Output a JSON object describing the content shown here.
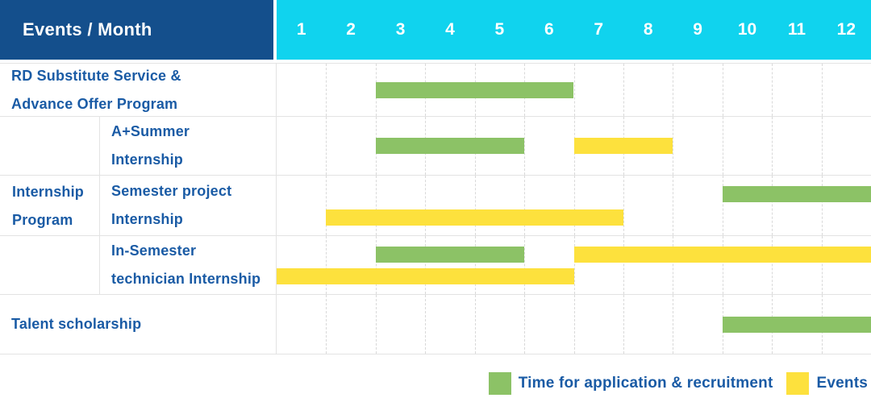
{
  "header": {
    "corner_label": "Events / Month"
  },
  "colors": {
    "header_bg": "#144F8C",
    "month_bg": "#10D3EE",
    "bar_green": "#8CC266",
    "bar_yellow": "#FDE13D",
    "label_text": "#1A5BA5",
    "grid_line": "#E3E3E3",
    "grid_dash": "#D9D9D9"
  },
  "legend": {
    "items": [
      {
        "kind": "recruitment",
        "label": "Time for application & recruitment"
      },
      {
        "kind": "event",
        "label": "Events"
      }
    ]
  },
  "chart_data": {
    "type": "gantt",
    "x_axis_label": "Month",
    "x_range": [
      1,
      12
    ],
    "months": [
      "1",
      "2",
      "3",
      "4",
      "5",
      "6",
      "7",
      "8",
      "9",
      "10",
      "11",
      "12"
    ],
    "group": {
      "label": "Internship\nProgram"
    },
    "rows": [
      {
        "label": "RD Substitute Service &\nAdvance Offer Program",
        "group": null,
        "bars": [
          {
            "kind": "recruitment",
            "start_month": 3,
            "end_month": 6,
            "lane": "center"
          }
        ]
      },
      {
        "label": "A+Summer\nInternship",
        "group": "Internship Program",
        "bars": [
          {
            "kind": "recruitment",
            "start_month": 3,
            "end_month": 5,
            "lane": "center"
          },
          {
            "kind": "event",
            "start_month": 7,
            "end_month": 8,
            "lane": "center"
          }
        ]
      },
      {
        "label": "Semester project\nInternship",
        "group": "Internship Program",
        "bars": [
          {
            "kind": "recruitment",
            "start_month": 10,
            "end_month": 12,
            "lane": "top"
          },
          {
            "kind": "event",
            "start_month": 2,
            "end_month": 7,
            "lane": "bottom"
          }
        ]
      },
      {
        "label": "In-Semester\ntechnician Internship",
        "group": "Internship Program",
        "bars": [
          {
            "kind": "recruitment",
            "start_month": 3,
            "end_month": 5,
            "lane": "top"
          },
          {
            "kind": "event",
            "start_month": 7,
            "end_month": 12,
            "lane": "top"
          },
          {
            "kind": "event",
            "start_month": 1,
            "end_month": 6,
            "lane": "bottom"
          }
        ]
      },
      {
        "label": "Talent scholarship",
        "group": null,
        "bars": [
          {
            "kind": "recruitment",
            "start_month": 10,
            "end_month": 12,
            "lane": "center"
          }
        ]
      }
    ]
  }
}
